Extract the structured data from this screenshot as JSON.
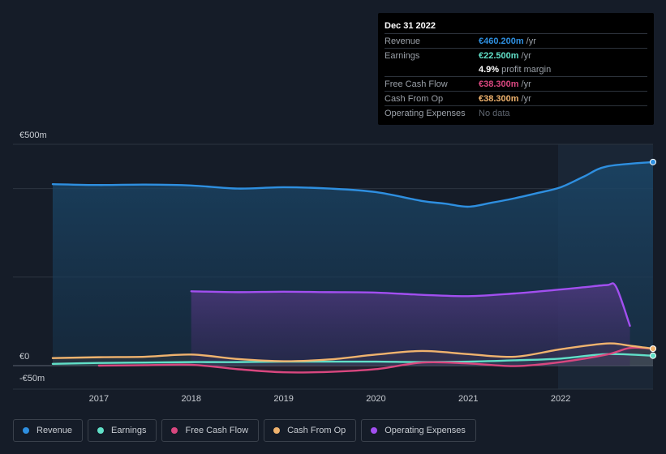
{
  "chart_data": {
    "type": "area",
    "currency": "€",
    "y_labels": [
      "€500m",
      "€0",
      "-€50m"
    ],
    "ylim": [
      -50,
      500
    ],
    "x_ticks": [
      "2017",
      "2018",
      "2019",
      "2020",
      "2021",
      "2022"
    ],
    "grid": true,
    "series": [
      {
        "name": "Revenue",
        "color": "#2e8fe0",
        "x": [
          2016.5,
          2017,
          2017.5,
          2018,
          2018.5,
          2019,
          2019.5,
          2020,
          2020.5,
          2020.75,
          2021,
          2021.25,
          2021.5,
          2021.75,
          2022,
          2022.25,
          2022.5,
          2023
        ],
        "values": [
          410,
          408,
          409,
          407,
          400,
          403,
          400,
          392,
          372,
          366,
          359,
          368,
          378,
          390,
          403,
          427,
          450,
          460
        ]
      },
      {
        "name": "Earnings",
        "color": "#61e0c8",
        "x": [
          2016.5,
          2017,
          2017.5,
          2018,
          2018.5,
          2019,
          2019.5,
          2020,
          2020.5,
          2021,
          2021.5,
          2022,
          2022.5,
          2023
        ],
        "values": [
          4,
          6,
          7,
          8,
          8,
          9,
          9,
          9,
          8,
          9,
          12,
          16,
          26,
          22.5
        ]
      },
      {
        "name": "Free Cash Flow",
        "color": "#d9477f",
        "x": [
          2017,
          2017.5,
          2018,
          2018.5,
          2019,
          2019.5,
          2020,
          2020.5,
          2021,
          2021.5,
          2022,
          2022.5,
          2022.75,
          2023
        ],
        "values": [
          0,
          1,
          2,
          -8,
          -15,
          -14,
          -8,
          7,
          5,
          -1,
          8,
          25,
          40,
          38.3
        ]
      },
      {
        "name": "Cash From Op",
        "color": "#f0b36e",
        "x": [
          2016.5,
          2017,
          2017.5,
          2018,
          2018.5,
          2019,
          2019.5,
          2020,
          2020.5,
          2021,
          2021.5,
          2022,
          2022.5,
          2022.75,
          2023
        ],
        "values": [
          17,
          19,
          20,
          25,
          15,
          10,
          14,
          25,
          33,
          26,
          20,
          37,
          50,
          45,
          38.3
        ]
      },
      {
        "name": "Operating Expenses",
        "color": "#a24ff0",
        "x": [
          2018,
          2018.5,
          2019,
          2019.5,
          2020,
          2020.5,
          2021,
          2021.5,
          2022,
          2022.25,
          2022.5,
          2022.6,
          2022.75
        ],
        "values": [
          168,
          166,
          167,
          166,
          165,
          160,
          157,
          163,
          172,
          177,
          182,
          178,
          90
        ]
      }
    ],
    "tooltip": {
      "date": "Dec 31 2022",
      "rows": [
        {
          "label": "Revenue",
          "value": "€460.200m",
          "unit": "/yr",
          "color": "#2e8fe0"
        },
        {
          "label": "Earnings",
          "value": "€22.500m",
          "unit": "/yr",
          "color": "#61e0c8"
        },
        {
          "label": "",
          "value": "4.9%",
          "unit": "profit margin",
          "color": "#ffffff"
        },
        {
          "label": "Free Cash Flow",
          "value": "€38.300m",
          "unit": "/yr",
          "color": "#d9477f"
        },
        {
          "label": "Cash From Op",
          "value": "€38.300m",
          "unit": "/yr",
          "color": "#f0b36e"
        },
        {
          "label": "Operating Expenses",
          "value": "No data",
          "unit": "",
          "color": "#5f6670"
        }
      ]
    },
    "legend": [
      "Revenue",
      "Earnings",
      "Free Cash Flow",
      "Cash From Op",
      "Operating Expenses"
    ]
  }
}
